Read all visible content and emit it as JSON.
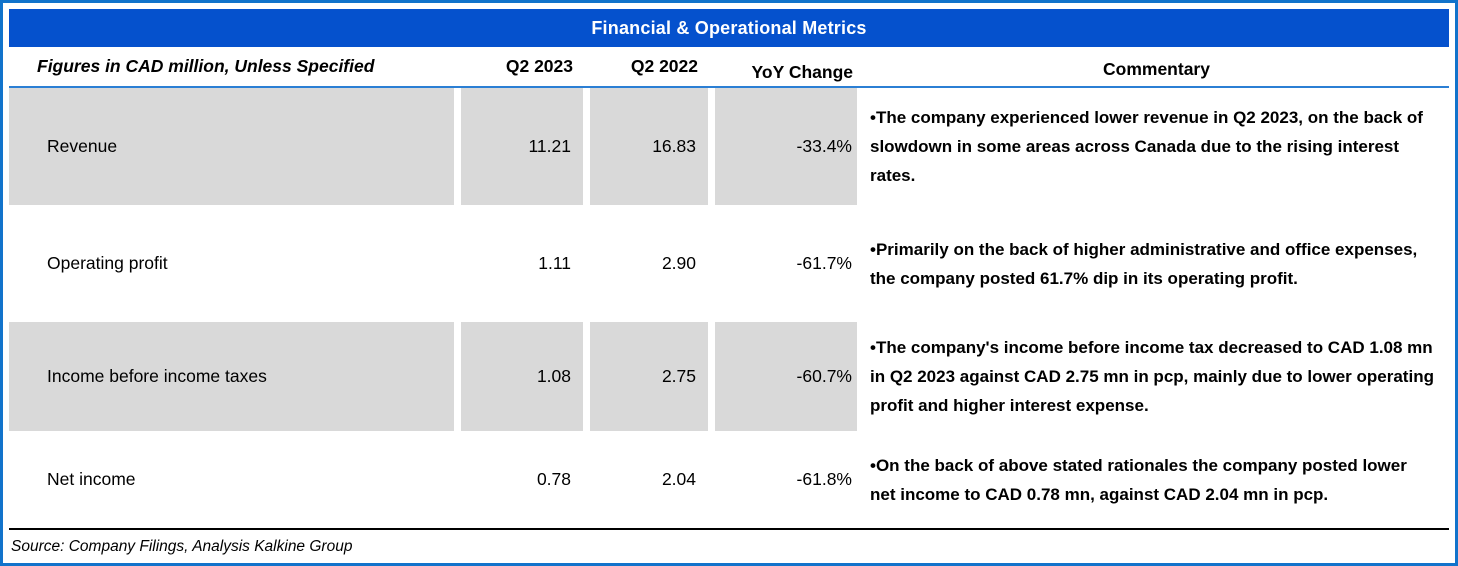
{
  "title": "Financial & Operational Metrics",
  "columns": {
    "label": "Figures in CAD million, Unless Specified",
    "q2_2023": "Q2 2023",
    "q2_2022": "Q2 2022",
    "yoy": "YoY Change",
    "commentary": "Commentary"
  },
  "rows": [
    {
      "label": "Revenue",
      "q2_2023": "11.21",
      "q2_2022": "16.83",
      "yoy": "-33.4%",
      "commentary": "•The company experienced lower revenue in Q2 2023, on the back of slowdown in some areas across Canada due to the rising interest rates."
    },
    {
      "label": "Operating profit",
      "q2_2023": "1.11",
      "q2_2022": "2.90",
      "yoy": "-61.7%",
      "commentary": "•Primarily on the back of higher administrative and office expenses, the company posted 61.7% dip in its operating profit."
    },
    {
      "label": "Income before income taxes",
      "q2_2023": "1.08",
      "q2_2022": "2.75",
      "yoy": "-60.7%",
      "commentary": "•The company's income before income tax decreased to CAD 1.08 mn in Q2 2023 against CAD 2.75 mn in pcp, mainly due to lower operating profit and higher interest expense."
    },
    {
      "label": "Net income",
      "q2_2023": "0.78",
      "q2_2022": "2.04",
      "yoy": "-61.8%",
      "commentary": "•On the back of above stated rationales the company posted lower net income to CAD 0.78 mn, against CAD 2.04 mn in pcp."
    }
  ],
  "source": "Source: Company Filings, Analysis Kalkine Group",
  "colors": {
    "title_band_blue": "#0551CD",
    "outer_border_blue": "#1173CB",
    "header_underline_blue": "#2B7FD4",
    "row_shade_gray": "#D9D9D9",
    "separator_black": "#000000",
    "title_text_white": "#FFFFFF",
    "body_text_black": "#000000"
  }
}
